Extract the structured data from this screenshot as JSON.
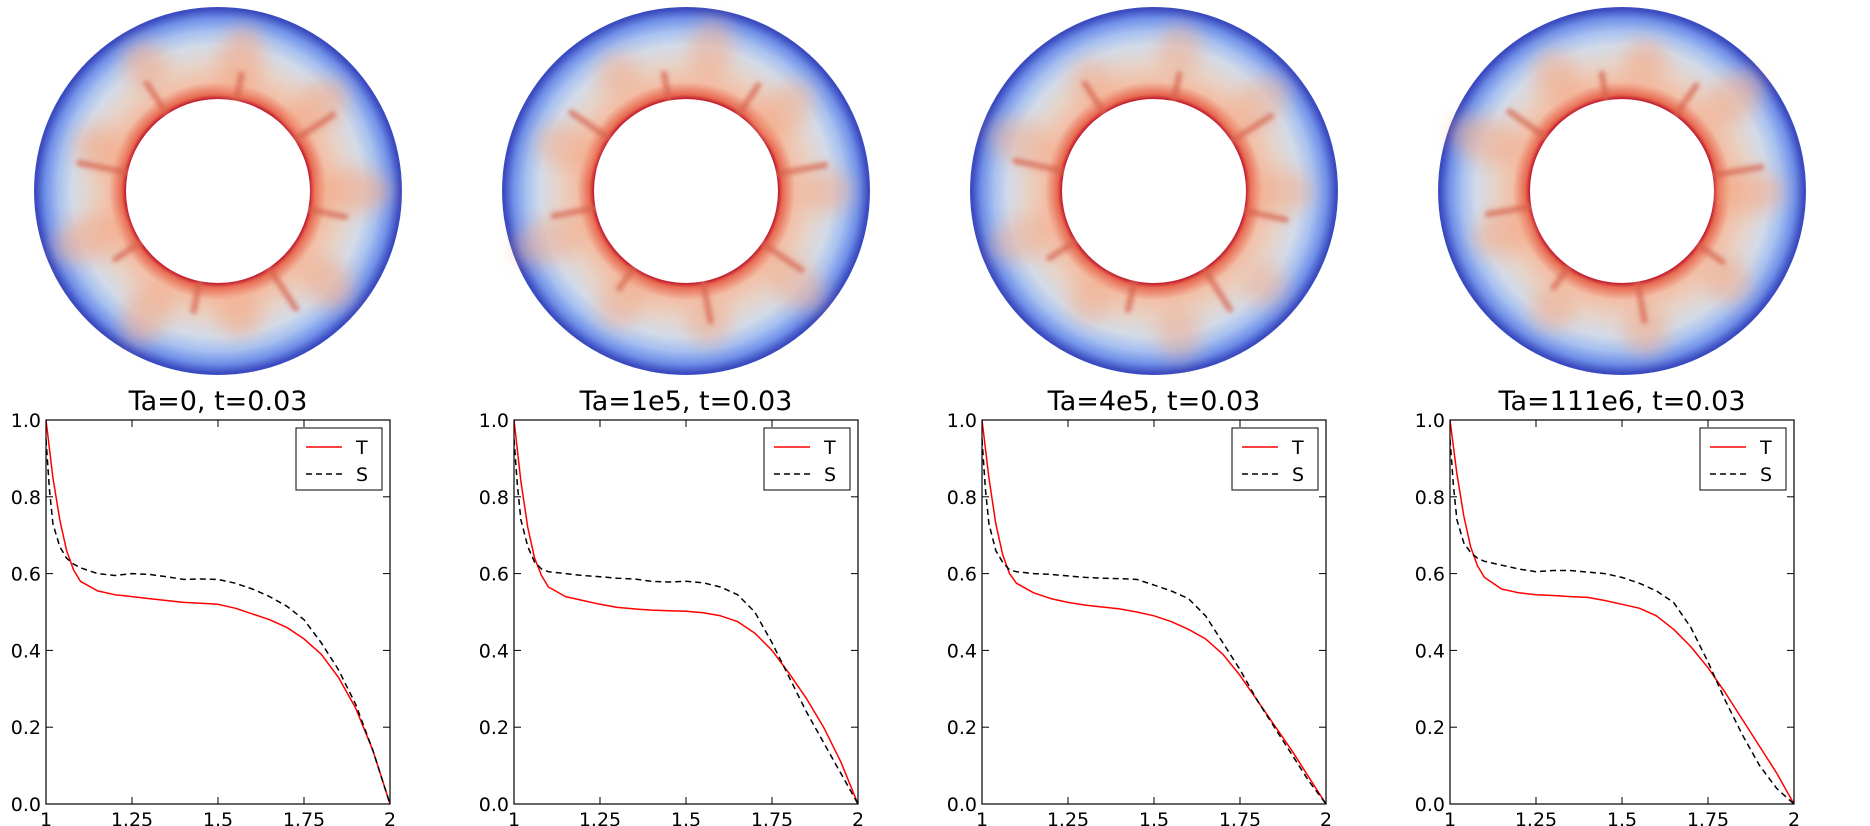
{
  "chart_data": [
    {
      "type": "line",
      "title": "Ta=0, t=0.03",
      "xlabel": "",
      "ylabel": "",
      "xlim": [
        1,
        2
      ],
      "ylim": [
        0,
        1
      ],
      "xticks": [
        1,
        1.25,
        1.5,
        1.75,
        2
      ],
      "xtick_labels": [
        "1",
        "1.25",
        "1.5",
        "1.75",
        "2"
      ],
      "yticks": [
        0,
        0.2,
        0.4,
        0.6,
        0.8,
        1
      ],
      "ytick_labels": [
        "0.0",
        "0.2",
        "0.4",
        "0.6",
        "0.8",
        "1.0"
      ],
      "legend_position": "top-right",
      "series": [
        {
          "name": "T",
          "color": "#ff0000",
          "dash": "solid",
          "x": [
            1.0,
            1.02,
            1.04,
            1.06,
            1.08,
            1.1,
            1.15,
            1.2,
            1.25,
            1.3,
            1.35,
            1.4,
            1.45,
            1.5,
            1.55,
            1.6,
            1.65,
            1.7,
            1.75,
            1.8,
            1.85,
            1.9,
            1.95,
            2.0
          ],
          "y": [
            1.0,
            0.85,
            0.74,
            0.66,
            0.61,
            0.58,
            0.555,
            0.545,
            0.54,
            0.535,
            0.53,
            0.525,
            0.523,
            0.52,
            0.51,
            0.495,
            0.48,
            0.46,
            0.43,
            0.39,
            0.33,
            0.25,
            0.14,
            0.0
          ]
        },
        {
          "name": "S",
          "color": "#000000",
          "dash": "dashed",
          "x": [
            1.0,
            1.01,
            1.02,
            1.04,
            1.06,
            1.08,
            1.1,
            1.15,
            1.2,
            1.25,
            1.3,
            1.35,
            1.4,
            1.45,
            1.5,
            1.55,
            1.6,
            1.65,
            1.7,
            1.75,
            1.8,
            1.85,
            1.9,
            1.95,
            2.0
          ],
          "y": [
            0.95,
            0.82,
            0.73,
            0.67,
            0.64,
            0.625,
            0.615,
            0.6,
            0.595,
            0.6,
            0.598,
            0.592,
            0.585,
            0.586,
            0.585,
            0.575,
            0.56,
            0.54,
            0.515,
            0.48,
            0.42,
            0.35,
            0.26,
            0.14,
            0.0
          ]
        }
      ],
      "image_intensity": 1.0
    },
    {
      "type": "line",
      "title": "Ta=1e5, t=0.03",
      "xlabel": "",
      "ylabel": "",
      "xlim": [
        1,
        2
      ],
      "ylim": [
        0,
        1
      ],
      "xticks": [
        1,
        1.25,
        1.5,
        1.75,
        2
      ],
      "xtick_labels": [
        "1",
        "1.25",
        "1.5",
        "1.75",
        "2"
      ],
      "yticks": [
        0,
        0.2,
        0.4,
        0.6,
        0.8,
        1
      ],
      "ytick_labels": [
        "0.0",
        "0.2",
        "0.4",
        "0.6",
        "0.8",
        "1.0"
      ],
      "legend_position": "top-right",
      "series": [
        {
          "name": "T",
          "color": "#ff0000",
          "dash": "solid",
          "x": [
            1.0,
            1.02,
            1.04,
            1.06,
            1.08,
            1.1,
            1.15,
            1.2,
            1.25,
            1.3,
            1.35,
            1.4,
            1.45,
            1.5,
            1.55,
            1.6,
            1.65,
            1.7,
            1.75,
            1.8,
            1.85,
            1.9,
            1.95,
            2.0
          ],
          "y": [
            1.0,
            0.84,
            0.72,
            0.64,
            0.595,
            0.565,
            0.54,
            0.53,
            0.52,
            0.512,
            0.508,
            0.505,
            0.503,
            0.502,
            0.498,
            0.49,
            0.475,
            0.445,
            0.4,
            0.34,
            0.275,
            0.2,
            0.11,
            0.0
          ]
        },
        {
          "name": "S",
          "color": "#000000",
          "dash": "dashed",
          "x": [
            1.0,
            1.01,
            1.02,
            1.04,
            1.06,
            1.08,
            1.1,
            1.15,
            1.2,
            1.25,
            1.3,
            1.35,
            1.4,
            1.45,
            1.5,
            1.55,
            1.6,
            1.65,
            1.7,
            1.75,
            1.8,
            1.85,
            1.9,
            1.95,
            2.0
          ],
          "y": [
            0.95,
            0.83,
            0.74,
            0.67,
            0.63,
            0.612,
            0.605,
            0.6,
            0.595,
            0.592,
            0.588,
            0.586,
            0.58,
            0.578,
            0.58,
            0.576,
            0.565,
            0.545,
            0.5,
            0.42,
            0.33,
            0.24,
            0.16,
            0.08,
            0.0
          ]
        }
      ],
      "image_intensity": 0.85
    },
    {
      "type": "line",
      "title": "Ta=4e5, t=0.03",
      "xlabel": "",
      "ylabel": "",
      "xlim": [
        1,
        2
      ],
      "ylim": [
        0,
        1
      ],
      "xticks": [
        1,
        1.25,
        1.5,
        1.75,
        2
      ],
      "xtick_labels": [
        "1",
        "1.25",
        "1.5",
        "1.75",
        "2"
      ],
      "yticks": [
        0,
        0.2,
        0.4,
        0.6,
        0.8,
        1
      ],
      "ytick_labels": [
        "0.0",
        "0.2",
        "0.4",
        "0.6",
        "0.8",
        "1.0"
      ],
      "legend_position": "top-right",
      "series": [
        {
          "name": "T",
          "color": "#ff0000",
          "dash": "solid",
          "x": [
            1.0,
            1.02,
            1.04,
            1.06,
            1.08,
            1.1,
            1.15,
            1.2,
            1.25,
            1.3,
            1.35,
            1.4,
            1.45,
            1.5,
            1.55,
            1.6,
            1.65,
            1.7,
            1.75,
            1.8,
            1.85,
            1.9,
            1.95,
            2.0
          ],
          "y": [
            1.0,
            0.85,
            0.73,
            0.65,
            0.6,
            0.575,
            0.55,
            0.535,
            0.525,
            0.518,
            0.513,
            0.508,
            0.5,
            0.49,
            0.475,
            0.455,
            0.43,
            0.39,
            0.335,
            0.27,
            0.205,
            0.14,
            0.07,
            0.0
          ]
        },
        {
          "name": "S",
          "color": "#000000",
          "dash": "dashed",
          "x": [
            1.0,
            1.01,
            1.02,
            1.04,
            1.06,
            1.08,
            1.1,
            1.15,
            1.2,
            1.25,
            1.3,
            1.35,
            1.4,
            1.45,
            1.5,
            1.55,
            1.6,
            1.65,
            1.7,
            1.75,
            1.8,
            1.85,
            1.9,
            1.95,
            2.0
          ],
          "y": [
            0.95,
            0.82,
            0.73,
            0.66,
            0.63,
            0.61,
            0.605,
            0.6,
            0.598,
            0.594,
            0.59,
            0.588,
            0.587,
            0.585,
            0.57,
            0.555,
            0.535,
            0.49,
            0.42,
            0.35,
            0.27,
            0.2,
            0.13,
            0.06,
            0.0
          ]
        }
      ],
      "image_intensity": 0.8
    },
    {
      "type": "line",
      "title": "Ta=111e6, t=0.03",
      "xlabel": "",
      "ylabel": "",
      "xlim": [
        1,
        2
      ],
      "ylim": [
        0,
        1
      ],
      "xticks": [
        1,
        1.25,
        1.5,
        1.75,
        2
      ],
      "xtick_labels": [
        "1",
        "1.25",
        "1.5",
        "1.75",
        "2"
      ],
      "yticks": [
        0,
        0.2,
        0.4,
        0.6,
        0.8,
        1
      ],
      "ytick_labels": [
        "0.0",
        "0.2",
        "0.4",
        "0.6",
        "0.8",
        "1.0"
      ],
      "legend_position": "top-right",
      "series": [
        {
          "name": "T",
          "color": "#ff0000",
          "dash": "solid",
          "x": [
            1.0,
            1.02,
            1.04,
            1.06,
            1.08,
            1.1,
            1.15,
            1.2,
            1.25,
            1.3,
            1.35,
            1.4,
            1.45,
            1.5,
            1.55,
            1.6,
            1.65,
            1.7,
            1.75,
            1.8,
            1.85,
            1.9,
            1.95,
            2.0
          ],
          "y": [
            1.0,
            0.86,
            0.75,
            0.67,
            0.62,
            0.59,
            0.56,
            0.55,
            0.545,
            0.543,
            0.54,
            0.538,
            0.53,
            0.52,
            0.51,
            0.49,
            0.455,
            0.41,
            0.355,
            0.29,
            0.22,
            0.15,
            0.08,
            0.0
          ]
        },
        {
          "name": "S",
          "color": "#000000",
          "dash": "dashed",
          "x": [
            1.0,
            1.01,
            1.02,
            1.04,
            1.06,
            1.08,
            1.1,
            1.15,
            1.2,
            1.25,
            1.3,
            1.35,
            1.4,
            1.45,
            1.5,
            1.55,
            1.6,
            1.65,
            1.7,
            1.75,
            1.8,
            1.85,
            1.9,
            1.95,
            2.0
          ],
          "y": [
            0.95,
            0.83,
            0.74,
            0.68,
            0.655,
            0.64,
            0.632,
            0.622,
            0.612,
            0.605,
            0.608,
            0.608,
            0.604,
            0.6,
            0.59,
            0.575,
            0.555,
            0.525,
            0.46,
            0.37,
            0.27,
            0.18,
            0.1,
            0.04,
            0.0
          ]
        }
      ],
      "image_intensity": 0.95
    }
  ]
}
